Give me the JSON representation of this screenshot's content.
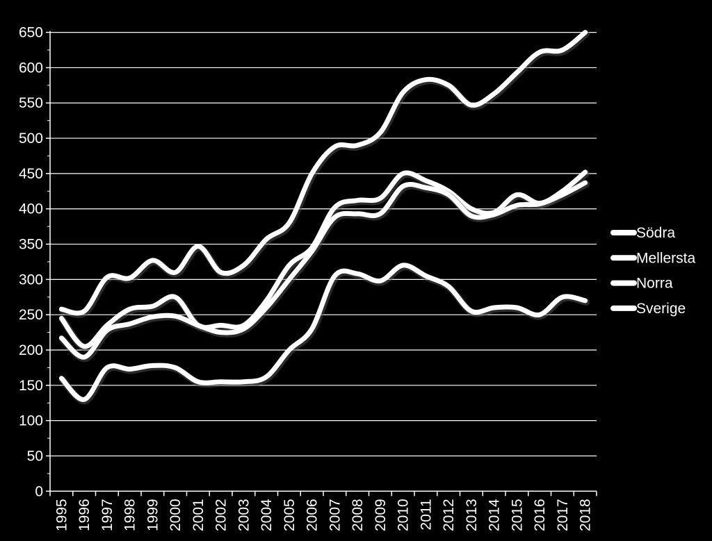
{
  "colors": {
    "background": "#000000",
    "foreground": "#ffffff",
    "grid": "#ffffff"
  },
  "chart_data": {
    "type": "line",
    "title": "",
    "xlabel": "",
    "ylabel": "",
    "ylim": [
      0,
      650
    ],
    "yticks": [
      "0",
      "50",
      "100",
      "150",
      "200",
      "250",
      "300",
      "350",
      "400",
      "450",
      "500",
      "550",
      "600",
      "650"
    ],
    "categories": [
      "1995",
      "1996",
      "1997",
      "1998",
      "1999",
      "2000",
      "2001",
      "2002",
      "2003",
      "2004",
      "2005",
      "2006",
      "2007",
      "2008",
      "2009",
      "2010",
      "2011",
      "2012",
      "2013",
      "2014",
      "2015",
      "2016",
      "2017",
      "2018"
    ],
    "grid": true,
    "legend_position": "right",
    "series": [
      {
        "name": "Södra",
        "values": [
          258,
          255,
          303,
          302,
          327,
          310,
          347,
          310,
          320,
          357,
          380,
          450,
          488,
          490,
          508,
          565,
          583,
          575,
          547,
          563,
          593,
          622,
          625,
          650
        ]
      },
      {
        "name": "Mellersta",
        "values": [
          245,
          205,
          235,
          258,
          262,
          275,
          235,
          235,
          235,
          270,
          320,
          345,
          402,
          412,
          415,
          450,
          440,
          425,
          400,
          395,
          420,
          408,
          425,
          452
        ]
      },
      {
        "name": "Norra",
        "values": [
          160,
          130,
          175,
          173,
          178,
          175,
          155,
          155,
          155,
          162,
          200,
          230,
          305,
          308,
          298,
          320,
          305,
          290,
          255,
          260,
          260,
          250,
          275,
          270
        ]
      },
      {
        "name": "Sverige",
        "values": [
          217,
          190,
          228,
          237,
          247,
          248,
          235,
          225,
          230,
          260,
          300,
          340,
          388,
          393,
          393,
          432,
          430,
          420,
          390,
          392,
          405,
          407,
          420,
          437
        ]
      }
    ]
  }
}
